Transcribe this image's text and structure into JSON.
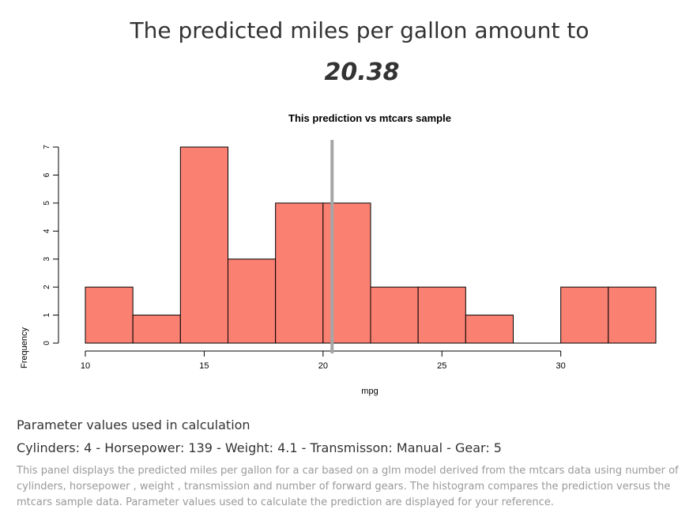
{
  "header": {
    "headline": "The predicted miles per gallon amount to",
    "prediction_value": "20.38"
  },
  "parameters": {
    "heading": "Parameter values used in calculation",
    "values_line": "Cylinders: 4 - Horsepower: 139 - Weight: 4.1 - Transmisson: Manual - Gear: 5"
  },
  "description": "This panel displays the predicted miles per gallon for a car based on a glm model derived from the mtcars data using number of cylinders, horsepower , weight , transmission and number of forward gears. The histogram compares the prediction versus the mtcars sample data. Parameter values used to calculate the prediction are displayed for your reference.",
  "chart_data": {
    "type": "bar",
    "title": "This prediction vs mtcars sample",
    "xlabel": "mpg",
    "ylabel": "Frequency",
    "bins": [
      [
        10,
        12
      ],
      [
        12,
        14
      ],
      [
        14,
        16
      ],
      [
        16,
        18
      ],
      [
        18,
        20
      ],
      [
        20,
        22
      ],
      [
        22,
        24
      ],
      [
        24,
        26
      ],
      [
        26,
        28
      ],
      [
        28,
        30
      ],
      [
        30,
        32
      ],
      [
        32,
        34
      ]
    ],
    "values": [
      2,
      1,
      7,
      3,
      5,
      5,
      2,
      2,
      1,
      0,
      2,
      2
    ],
    "xlim": [
      10,
      34
    ],
    "ylim": [
      0,
      7
    ],
    "xticks": [
      10,
      15,
      20,
      25,
      30
    ],
    "yticks": [
      0,
      1,
      2,
      3,
      4,
      5,
      6,
      7
    ],
    "prediction_line": 20.38,
    "bar_color": "#fa8072",
    "line_color": "#a6a6a6",
    "grid": false
  }
}
